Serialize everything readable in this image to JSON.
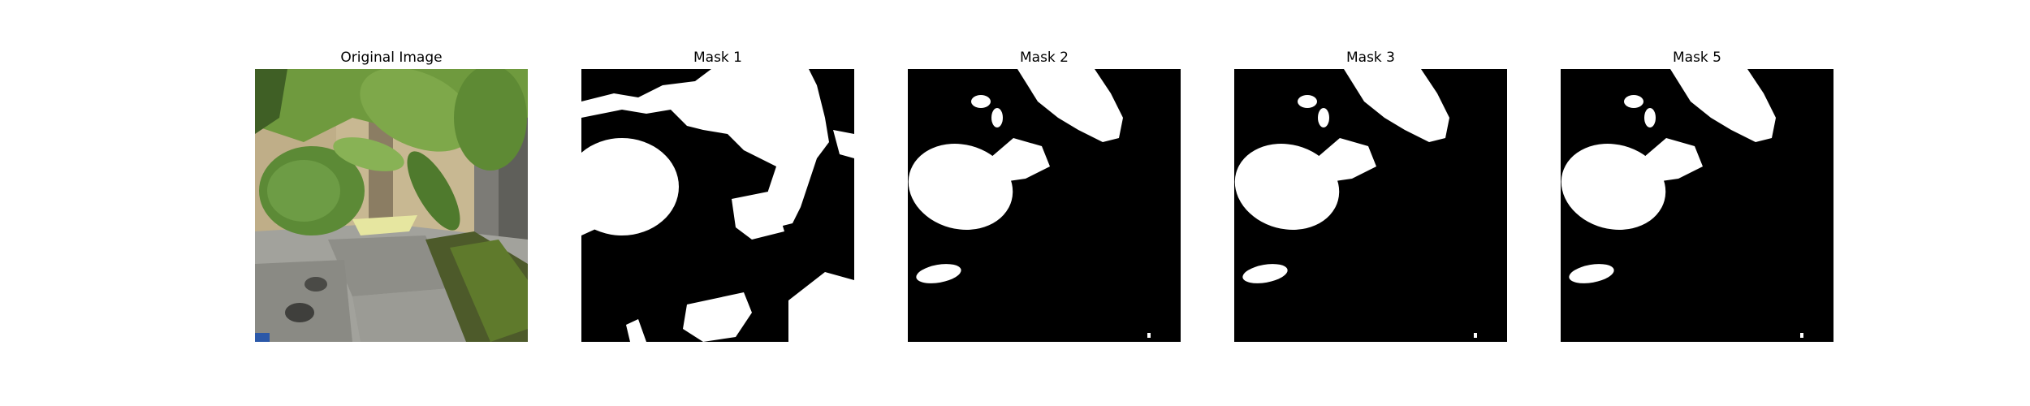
{
  "figure": {
    "panels": [
      {
        "title": "Original Image"
      },
      {
        "title": "Mask 1"
      },
      {
        "title": "Mask 2"
      },
      {
        "title": "Mask 3"
      },
      {
        "title": "Mask 5"
      }
    ]
  },
  "colors": {
    "background": "#ffffff",
    "mask_foreground": "#ffffff",
    "mask_background": "#000000",
    "leaf_green": "#6f9a3e",
    "stone_gray": "#a2a29c"
  }
}
